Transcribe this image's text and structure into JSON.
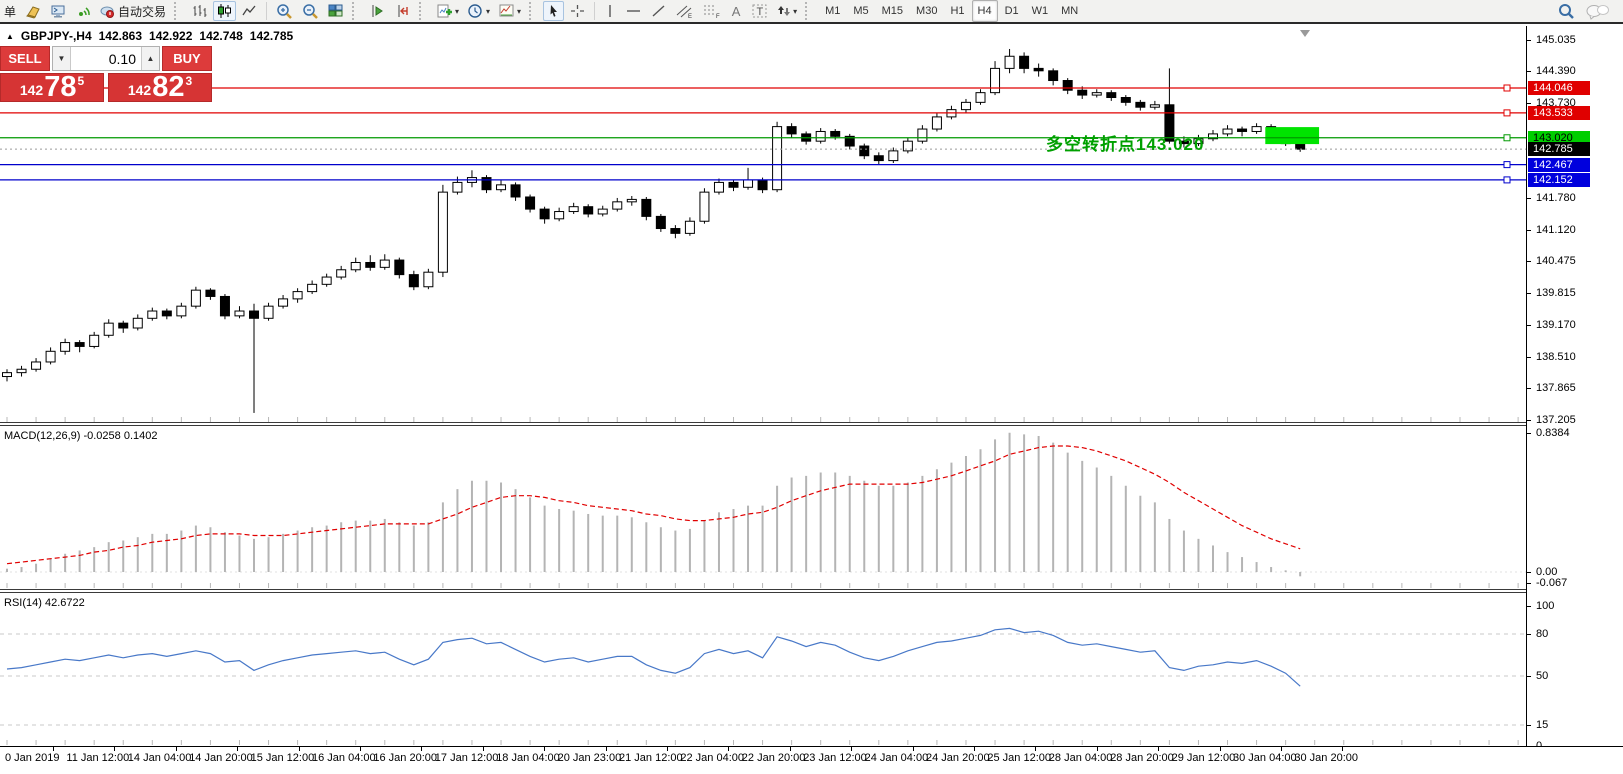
{
  "toolbar": {
    "partial_button": "单",
    "autotrading": "自动交易",
    "timeframes": [
      "M1",
      "M5",
      "M15",
      "M30",
      "H1",
      "H4",
      "D1",
      "W1",
      "MN"
    ],
    "active_timeframe": "H4",
    "icons": [
      "new-order-icon",
      "metaeditor-icon",
      "signal-icon",
      "autotrading-icon",
      "bar-chart-icon",
      "candlestick-chart-icon",
      "line-chart-icon",
      "zoom-in-icon",
      "zoom-out-icon",
      "tile-windows-icon",
      "auto-scroll-icon",
      "chart-shift-icon",
      "indicators-icon",
      "periods-icon",
      "templates-icon",
      "cursor-icon",
      "crosshair-icon",
      "vertical-line-icon",
      "horizontal-line-icon",
      "trendline-icon",
      "equidistant-channel-icon",
      "fibonacci-icon",
      "text-icon",
      "text-label-icon",
      "arrows-icon",
      "search-icon",
      "chat-icon"
    ]
  },
  "title_bar": {
    "arrow": "▲",
    "symbol": "GBPJPY-,H4",
    "open": "142.863",
    "high": "142.922",
    "low": "142.748",
    "close": "142.785"
  },
  "trade_panel": {
    "sell_label": "SELL",
    "buy_label": "BUY",
    "volume": "0.10",
    "down_arrow": "▼",
    "up_arrow": "▲",
    "sell_price": {
      "prefix": "142",
      "big": "78",
      "sup": "5"
    },
    "buy_price": {
      "prefix": "142",
      "big": "82",
      "sup": "3"
    }
  },
  "indicators": {
    "macd_label": "MACD(12,26,9) -0.0258 0.1402",
    "rsi_label": "RSI(14) 42.6722"
  },
  "annotation": {
    "text": "多空转折点143.020",
    "color": "#00a000"
  },
  "axes": {
    "price_ticks": [
      "145.035",
      "144.390",
      "143.730",
      "141.780",
      "141.120",
      "140.475",
      "139.815",
      "139.170",
      "138.510",
      "137.865",
      "137.205"
    ],
    "price_tags": [
      {
        "label": "144.046",
        "bg": "#e00000",
        "fg": "#ffffff"
      },
      {
        "label": "143.533",
        "bg": "#e00000",
        "fg": "#ffffff"
      },
      {
        "label": "143.020",
        "bg": "#00ce00",
        "fg": "#000000"
      },
      {
        "label": "142.785",
        "bg": "#000000",
        "fg": "#ffffff"
      },
      {
        "label": "142.467",
        "bg": "#0000dd",
        "fg": "#ffffff"
      },
      {
        "label": "142.152",
        "bg": "#0000dd",
        "fg": "#ffffff"
      }
    ],
    "macd_ticks": [
      "0.8384",
      "0.00",
      "-0.067"
    ],
    "rsi_ticks": [
      "100",
      "80",
      "50",
      "15",
      "0"
    ],
    "time_labels": [
      "0 Jan 2019",
      "11 Jan 12:00",
      "14 Jan 04:00",
      "14 Jan 20:00",
      "15 Jan 12:00",
      "16 Jan 04:00",
      "16 Jan 20:00",
      "17 Jan 12:00",
      "18 Jan 04:00",
      "20 Jan 23:00",
      "21 Jan 12:00",
      "22 Jan 04:00",
      "22 Jan 20:00",
      "23 Jan 12:00",
      "24 Jan 04:00",
      "24 Jan 20:00",
      "25 Jan 12:00",
      "28 Jan 04:00",
      "28 Jan 20:00",
      "29 Jan 12:00",
      "30 Jan 04:00",
      "30 Jan 20:00"
    ]
  },
  "chart_data": [
    {
      "type": "candlestick",
      "symbol": "GBPJPY-",
      "timeframe": "H4",
      "title": "GBPJPY-,H4 142.863 142.922 142.748 142.785",
      "view": {
        "top_price": 145.035,
        "bottom_price": 137.205
      },
      "current_price": 142.785,
      "hlines": [
        {
          "price": 144.046,
          "color": "#e00000",
          "style": "solid",
          "handle": true
        },
        {
          "price": 143.533,
          "color": "#e00000",
          "style": "solid",
          "handle": true
        },
        {
          "price": 143.02,
          "color": "#009a00",
          "style": "solid",
          "handle": true
        },
        {
          "price": 142.785,
          "color": "#9a9a9a",
          "style": "dot",
          "handle": false
        },
        {
          "price": 142.467,
          "color": "#0000cc",
          "style": "solid",
          "handle": true
        },
        {
          "price": 142.152,
          "color": "#0000cc",
          "style": "solid",
          "handle": true
        }
      ],
      "highlight_box": {
        "bar_start": 86.6,
        "bar_end": 90.3,
        "price_top": 143.24,
        "price_bottom": 142.89,
        "color": "#00e400"
      },
      "candles": [
        [
          138.1,
          138.25,
          138.0,
          138.18
        ],
        [
          138.18,
          138.32,
          138.1,
          138.25
        ],
        [
          138.25,
          138.48,
          138.2,
          138.4
        ],
        [
          138.4,
          138.7,
          138.35,
          138.62
        ],
        [
          138.62,
          138.88,
          138.55,
          138.8
        ],
        [
          138.8,
          138.85,
          138.6,
          138.72
        ],
        [
          138.72,
          139.02,
          138.68,
          138.95
        ],
        [
          138.95,
          139.28,
          138.9,
          139.2
        ],
        [
          139.2,
          139.25,
          139.0,
          139.1
        ],
        [
          139.1,
          139.38,
          139.05,
          139.3
        ],
        [
          139.3,
          139.52,
          139.25,
          139.45
        ],
        [
          139.45,
          139.5,
          139.28,
          139.35
        ],
        [
          139.35,
          139.62,
          139.3,
          139.55
        ],
        [
          139.55,
          139.95,
          139.5,
          139.88
        ],
        [
          139.88,
          139.92,
          139.68,
          139.75
        ],
        [
          139.75,
          139.8,
          139.28,
          139.35
        ],
        [
          139.35,
          139.55,
          139.3,
          139.45
        ],
        [
          139.45,
          139.6,
          137.35,
          139.3
        ],
        [
          139.3,
          139.62,
          139.25,
          139.55
        ],
        [
          139.55,
          139.78,
          139.5,
          139.7
        ],
        [
          139.7,
          139.92,
          139.62,
          139.85
        ],
        [
          139.85,
          140.08,
          139.8,
          140.0
        ],
        [
          140.0,
          140.22,
          139.95,
          140.15
        ],
        [
          140.15,
          140.38,
          140.1,
          140.3
        ],
        [
          140.3,
          140.55,
          140.25,
          140.45
        ],
        [
          140.45,
          140.6,
          140.28,
          140.35
        ],
        [
          140.35,
          140.62,
          140.3,
          140.5
        ],
        [
          140.5,
          140.55,
          140.12,
          140.2
        ],
        [
          140.2,
          140.28,
          139.88,
          139.95
        ],
        [
          139.95,
          140.32,
          139.9,
          140.25
        ],
        [
          140.25,
          142.05,
          140.15,
          141.9
        ],
        [
          141.9,
          142.22,
          141.85,
          142.1
        ],
        [
          142.1,
          142.35,
          142.0,
          142.2
        ],
        [
          142.2,
          142.25,
          141.88,
          141.95
        ],
        [
          141.95,
          142.15,
          141.9,
          142.05
        ],
        [
          142.05,
          142.1,
          141.72,
          141.8
        ],
        [
          141.8,
          141.85,
          141.48,
          141.55
        ],
        [
          141.55,
          141.6,
          141.25,
          141.35
        ],
        [
          141.35,
          141.58,
          141.3,
          141.5
        ],
        [
          141.5,
          141.68,
          141.45,
          141.6
        ],
        [
          141.6,
          141.65,
          141.38,
          141.45
        ],
        [
          141.45,
          141.62,
          141.4,
          141.55
        ],
        [
          141.55,
          141.78,
          141.5,
          141.7
        ],
        [
          141.7,
          141.82,
          141.62,
          141.75
        ],
        [
          141.75,
          141.8,
          141.32,
          141.4
        ],
        [
          141.4,
          141.45,
          141.08,
          141.15
        ],
        [
          141.15,
          141.22,
          140.95,
          141.05
        ],
        [
          141.05,
          141.38,
          141.0,
          141.3
        ],
        [
          141.3,
          141.98,
          141.25,
          141.9
        ],
        [
          141.9,
          142.18,
          141.85,
          142.1
        ],
        [
          142.1,
          142.15,
          141.92,
          142.0
        ],
        [
          142.0,
          142.4,
          141.95,
          142.15
        ],
        [
          142.15,
          142.2,
          141.88,
          141.95
        ],
        [
          141.95,
          143.35,
          141.9,
          143.25
        ],
        [
          143.25,
          143.32,
          143.02,
          143.1
        ],
        [
          143.1,
          143.15,
          142.88,
          142.95
        ],
        [
          142.95,
          143.22,
          142.9,
          143.15
        ],
        [
          143.15,
          143.2,
          142.98,
          143.05
        ],
        [
          143.05,
          143.1,
          142.78,
          142.85
        ],
        [
          142.85,
          142.9,
          142.58,
          142.65
        ],
        [
          142.65,
          142.72,
          142.48,
          142.55
        ],
        [
          142.55,
          142.82,
          142.5,
          142.75
        ],
        [
          142.75,
          143.02,
          142.7,
          142.95
        ],
        [
          142.95,
          143.28,
          142.9,
          143.2
        ],
        [
          143.2,
          143.52,
          143.15,
          143.45
        ],
        [
          143.45,
          143.68,
          143.4,
          143.6
        ],
        [
          143.6,
          143.82,
          143.52,
          143.75
        ],
        [
          143.75,
          144.02,
          143.7,
          143.95
        ],
        [
          143.95,
          144.6,
          143.9,
          144.45
        ],
        [
          144.45,
          144.85,
          144.35,
          144.7
        ],
        [
          144.7,
          144.78,
          144.35,
          144.45
        ],
        [
          144.45,
          144.55,
          144.28,
          144.4
        ],
        [
          144.4,
          144.45,
          144.1,
          144.2
        ],
        [
          144.2,
          144.25,
          143.92,
          144.0
        ],
        [
          144.0,
          144.08,
          143.82,
          143.9
        ],
        [
          143.9,
          144.02,
          143.85,
          143.95
        ],
        [
          143.95,
          144.0,
          143.78,
          143.85
        ],
        [
          143.85,
          143.9,
          143.68,
          143.75
        ],
        [
          143.75,
          143.8,
          143.58,
          143.65
        ],
        [
          143.65,
          143.78,
          143.6,
          143.7
        ],
        [
          143.7,
          144.45,
          142.9,
          142.95
        ],
        [
          142.95,
          143.05,
          142.82,
          142.9
        ],
        [
          142.9,
          143.08,
          142.85,
          143.0
        ],
        [
          143.0,
          143.18,
          142.95,
          143.1
        ],
        [
          143.1,
          143.28,
          143.05,
          143.2
        ],
        [
          143.2,
          143.25,
          143.05,
          143.15
        ],
        [
          143.15,
          143.32,
          143.1,
          143.25
        ],
        [
          143.25,
          143.3,
          143.0,
          143.05
        ],
        [
          143.05,
          143.1,
          142.85,
          142.9
        ],
        [
          142.9,
          142.95,
          142.73,
          142.785
        ]
      ]
    },
    {
      "type": "macd",
      "name": "MACD(12,26,9)",
      "current": {
        "macd": -0.0258,
        "signal": 0.1402
      },
      "range": [
        -0.067,
        0.8384
      ],
      "histogram": [
        0.02,
        0.03,
        0.05,
        0.08,
        0.11,
        0.13,
        0.15,
        0.18,
        0.19,
        0.21,
        0.23,
        0.23,
        0.25,
        0.28,
        0.27,
        0.24,
        0.22,
        0.2,
        0.21,
        0.23,
        0.25,
        0.27,
        0.28,
        0.3,
        0.31,
        0.31,
        0.32,
        0.3,
        0.28,
        0.3,
        0.42,
        0.5,
        0.55,
        0.55,
        0.54,
        0.5,
        0.45,
        0.4,
        0.38,
        0.37,
        0.35,
        0.34,
        0.34,
        0.33,
        0.3,
        0.27,
        0.25,
        0.26,
        0.31,
        0.36,
        0.38,
        0.4,
        0.4,
        0.52,
        0.57,
        0.58,
        0.6,
        0.6,
        0.58,
        0.55,
        0.52,
        0.52,
        0.54,
        0.58,
        0.62,
        0.66,
        0.7,
        0.74,
        0.8,
        0.84,
        0.83,
        0.82,
        0.78,
        0.72,
        0.67,
        0.63,
        0.58,
        0.52,
        0.46,
        0.42,
        0.32,
        0.25,
        0.2,
        0.16,
        0.12,
        0.09,
        0.06,
        0.03,
        0.01,
        -0.026
      ],
      "signal": [
        0.05,
        0.06,
        0.07,
        0.08,
        0.09,
        0.1,
        0.12,
        0.13,
        0.15,
        0.16,
        0.18,
        0.19,
        0.2,
        0.22,
        0.23,
        0.23,
        0.23,
        0.22,
        0.22,
        0.22,
        0.23,
        0.24,
        0.25,
        0.26,
        0.27,
        0.28,
        0.29,
        0.29,
        0.29,
        0.29,
        0.32,
        0.35,
        0.39,
        0.42,
        0.45,
        0.46,
        0.46,
        0.45,
        0.43,
        0.42,
        0.4,
        0.39,
        0.38,
        0.37,
        0.35,
        0.34,
        0.32,
        0.31,
        0.31,
        0.32,
        0.33,
        0.35,
        0.36,
        0.39,
        0.43,
        0.46,
        0.49,
        0.51,
        0.53,
        0.53,
        0.53,
        0.53,
        0.53,
        0.54,
        0.56,
        0.58,
        0.61,
        0.64,
        0.67,
        0.71,
        0.73,
        0.75,
        0.76,
        0.76,
        0.75,
        0.73,
        0.7,
        0.67,
        0.63,
        0.59,
        0.54,
        0.48,
        0.43,
        0.38,
        0.33,
        0.28,
        0.24,
        0.2,
        0.17,
        0.14
      ]
    },
    {
      "type": "line",
      "name": "RSI(14)",
      "current": 42.6722,
      "range": [
        0,
        100
      ],
      "levels": [
        80,
        50,
        15
      ],
      "color": "#4878c8",
      "values": [
        55,
        56,
        58,
        60,
        62,
        61,
        63,
        65,
        63,
        65,
        66,
        64,
        66,
        68,
        66,
        60,
        61,
        54,
        58,
        61,
        63,
        65,
        66,
        67,
        68,
        66,
        67,
        62,
        58,
        62,
        74,
        76,
        77,
        73,
        74,
        69,
        64,
        60,
        62,
        63,
        60,
        62,
        64,
        64,
        58,
        54,
        52,
        56,
        66,
        69,
        66,
        68,
        63,
        78,
        75,
        71,
        74,
        72,
        67,
        63,
        61,
        64,
        68,
        71,
        74,
        75,
        77,
        79,
        83,
        84,
        81,
        82,
        79,
        74,
        72,
        73,
        71,
        69,
        67,
        68,
        56,
        54,
        57,
        58,
        60,
        59,
        61,
        57,
        52,
        42.7
      ]
    }
  ]
}
